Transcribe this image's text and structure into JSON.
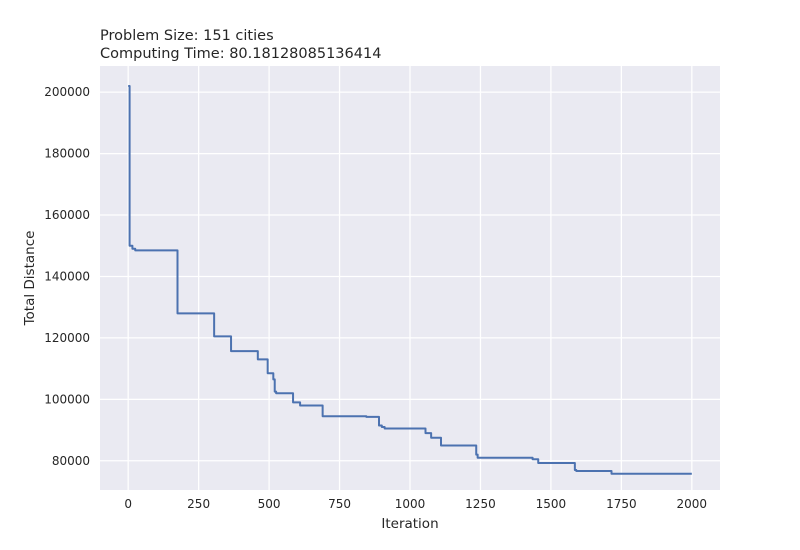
{
  "chart_data": {
    "type": "line",
    "title_lines": [
      "Problem Size: 151 cities",
      "Computing Time: 80.18128085136414"
    ],
    "xlabel": "Iteration",
    "ylabel": "Total Distance",
    "xlim": [
      -100,
      2100
    ],
    "ylim": [
      70500,
      208500
    ],
    "x_ticks": [
      0,
      250,
      500,
      750,
      1000,
      1250,
      1500,
      1750,
      2000
    ],
    "y_ticks": [
      80000,
      100000,
      120000,
      140000,
      160000,
      180000,
      200000
    ],
    "x_tick_labels": [
      "0",
      "250",
      "500",
      "750",
      "1000",
      "1250",
      "1500",
      "1750",
      "2000"
    ],
    "y_tick_labels": [
      "80000",
      "100000",
      "120000",
      "140000",
      "160000",
      "180000",
      "200000"
    ],
    "grid": true,
    "colors": {
      "background": "#eaeaf2",
      "grid": "#ffffff",
      "line": "#4c72b0",
      "text": "#262626"
    },
    "series": [
      {
        "step": "post",
        "x": [
          0,
          5,
          15,
          25,
          170,
          175,
          300,
          305,
          360,
          365,
          455,
          460,
          490,
          495,
          510,
          515,
          520,
          525,
          580,
          585,
          605,
          610,
          685,
          690,
          840,
          845,
          885,
          890,
          900,
          910,
          1050,
          1055,
          1070,
          1075,
          1105,
          1110,
          1230,
          1235,
          1240,
          1245,
          1425,
          1435,
          1445,
          1455,
          1580,
          1585,
          1590,
          1710,
          1715,
          2000
        ],
        "y": [
          202000,
          150000,
          149000,
          148500,
          148500,
          128000,
          128000,
          120500,
          120500,
          115700,
          115700,
          113000,
          113000,
          108500,
          108500,
          106500,
          102500,
          102000,
          102000,
          99000,
          99000,
          98000,
          98000,
          94500,
          94500,
          94300,
          94300,
          91500,
          91000,
          90500,
          90500,
          89000,
          89000,
          87500,
          87500,
          85000,
          85000,
          82000,
          81000,
          81000,
          81000,
          80500,
          80500,
          79300,
          79300,
          77000,
          76700,
          76700,
          75800,
          75800
        ]
      }
    ]
  }
}
